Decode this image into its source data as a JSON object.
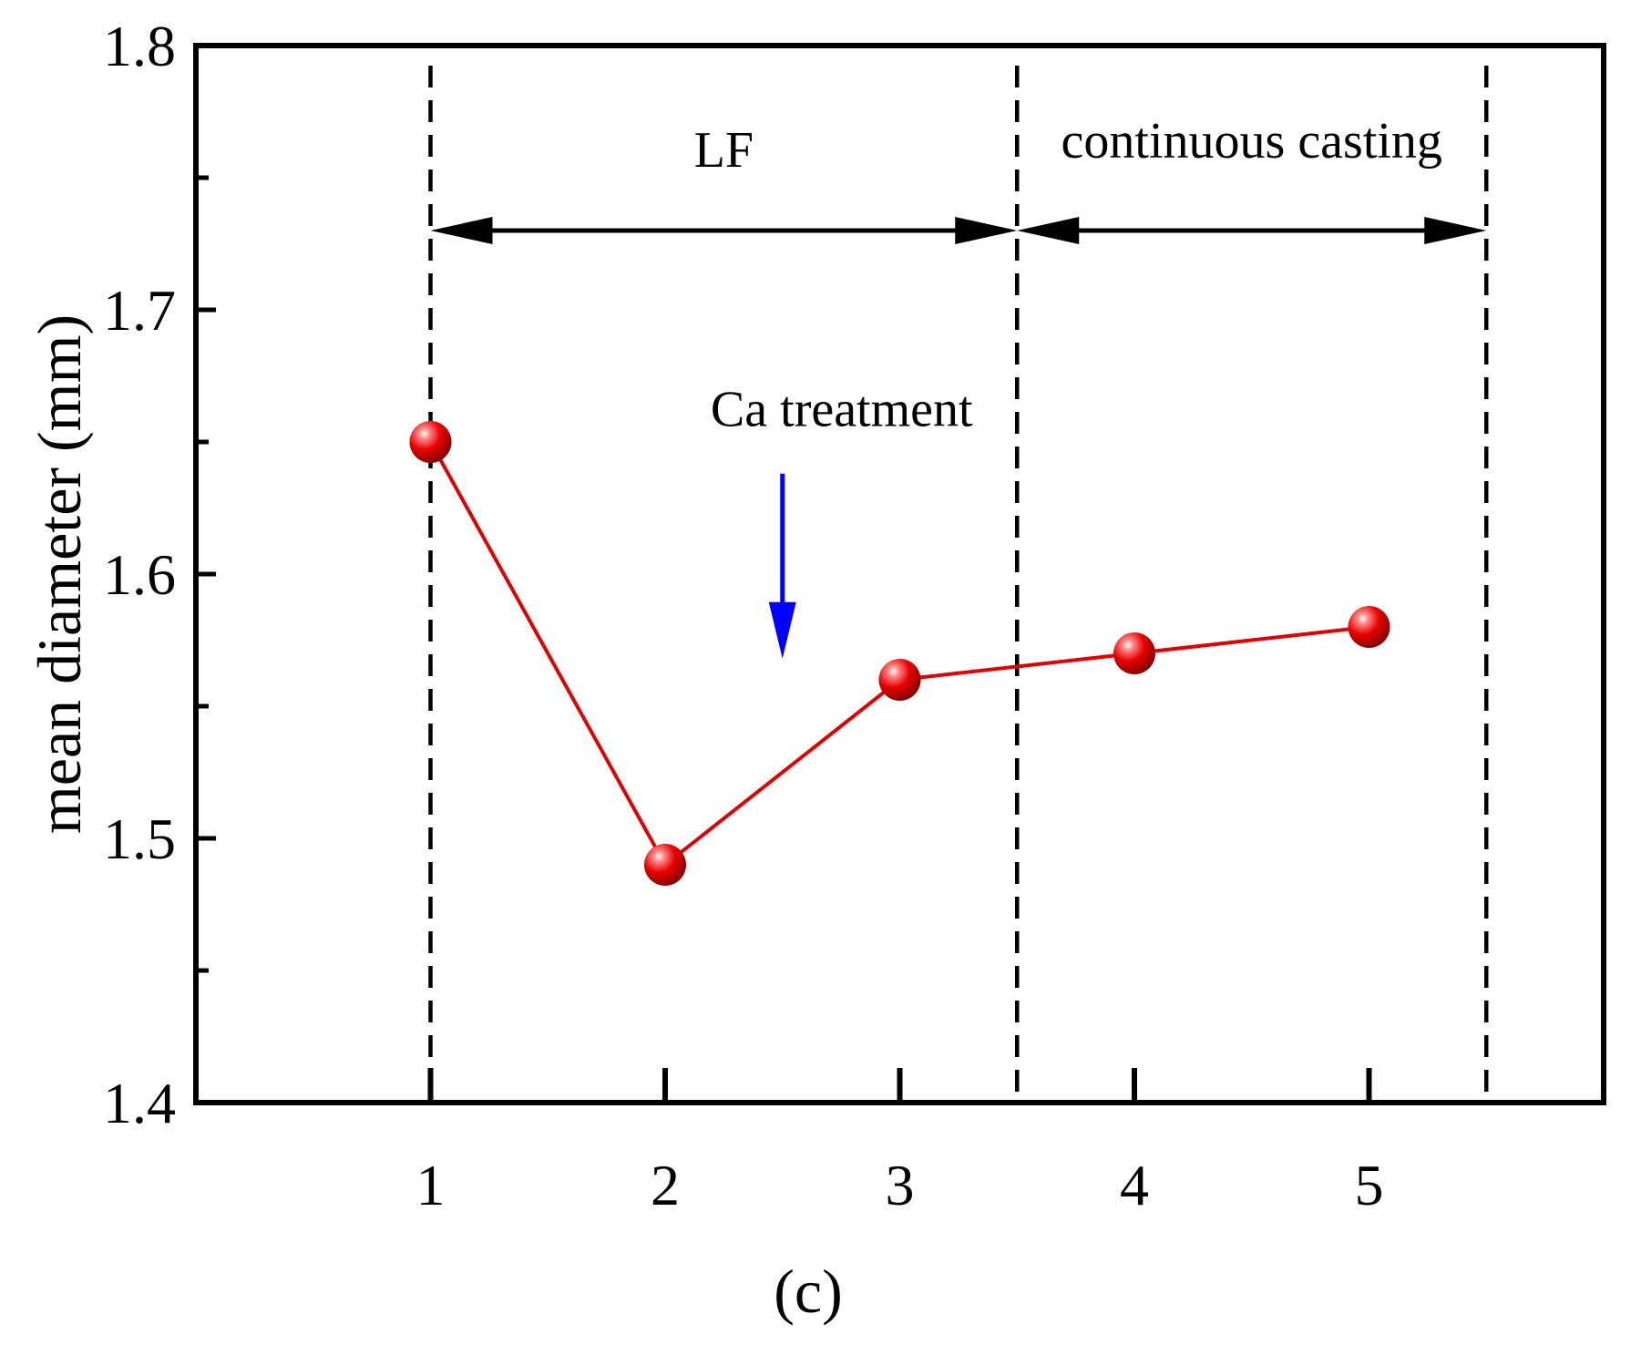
{
  "chart_data": {
    "type": "line",
    "x": [
      1,
      2,
      3,
      4,
      5
    ],
    "series": [
      {
        "name": "mean diameter",
        "values": [
          1.65,
          1.49,
          1.56,
          1.57,
          1.58
        ],
        "color": "#e00000"
      }
    ],
    "xticks": [
      "1",
      "2",
      "3",
      "4",
      "5"
    ],
    "xlim": [
      0,
      6
    ],
    "ylim": [
      1.4,
      1.8
    ],
    "yticks": [
      "1.4",
      "1.5",
      "1.6",
      "1.7",
      "1.8"
    ],
    "xlabel": "",
    "ylabel": "mean diameter (mm)",
    "panel_label": "(c)",
    "stage_boundaries": [
      1,
      3.5,
      5.5
    ],
    "stages": [
      {
        "label": "LF",
        "from": 1,
        "to": 3.5
      },
      {
        "label": "continuous casting",
        "from": 3.5,
        "to": 5.5
      }
    ],
    "annotations": [
      {
        "text": "Ca treatment",
        "arrow_x": 2.5,
        "arrow_from_y": 1.638,
        "arrow_to_y": 1.568,
        "arrow_color": "#0000ff"
      }
    ],
    "grid": false,
    "legend": "none"
  }
}
